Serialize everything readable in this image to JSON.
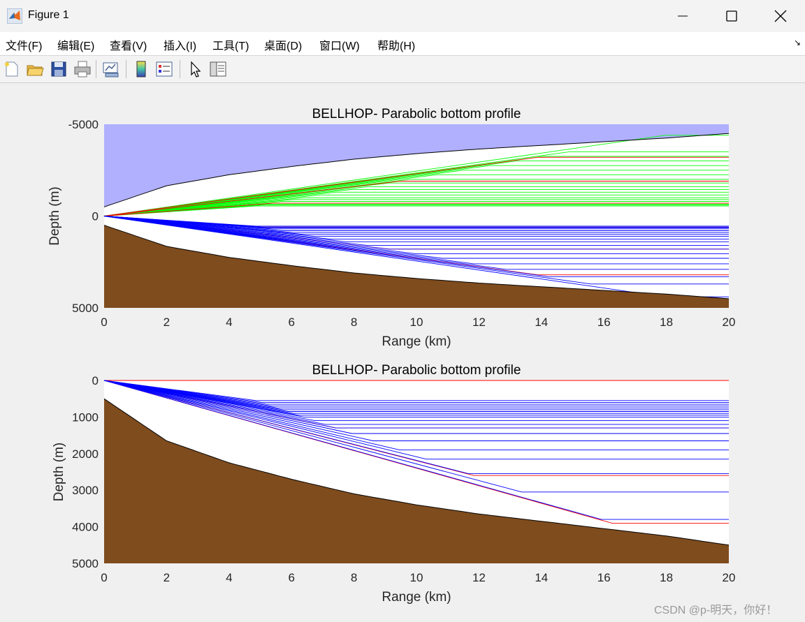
{
  "window": {
    "title": "Figure 1"
  },
  "menu": [
    "文件(F)",
    "编辑(E)",
    "查看(V)",
    "插入(I)",
    "工具(T)",
    "桌面(D)",
    "窗口(W)",
    "帮助(H)"
  ],
  "toolbar": [
    "new-figure-icon",
    "open-file-icon",
    "save-icon",
    "print-icon",
    "link-plot-icon",
    "colorbar-icon",
    "legend-icon",
    "pointer-icon",
    "property-inspector-icon"
  ],
  "watermark": "CSDN @p-明天，你好！",
  "colors": {
    "sky": "#b0b0ff",
    "bottom": "#7f4c1e",
    "ray_surface": "#00ff00",
    "ray_direct": "#ff0000",
    "ray_bottom": "#0000ff"
  },
  "chart_data": [
    {
      "type": "line",
      "title": "BELLHOP- Parabolic bottom profile",
      "xlabel": "Range (km)",
      "ylabel": "Depth (m)",
      "xlim": [
        0,
        20
      ],
      "ylim": [
        -5000,
        5000
      ],
      "y_reversed": true,
      "xticks": [
        "0",
        "2",
        "4",
        "6",
        "8",
        "10",
        "12",
        "14",
        "16",
        "18",
        "20"
      ],
      "yticks": [
        "-5000",
        "0",
        "5000"
      ],
      "surface_profile": {
        "x": [
          0,
          2,
          4,
          6,
          8,
          10,
          12,
          14,
          16,
          18,
          20
        ],
        "depth": [
          -500,
          -1650,
          -2250,
          -2700,
          -3100,
          -3400,
          -3650,
          -3850,
          -4050,
          -4250,
          -4500
        ]
      },
      "bottom_profile": {
        "x": [
          0,
          2,
          4,
          6,
          8,
          10,
          12,
          14,
          16,
          18,
          20
        ],
        "depth": [
          500,
          1650,
          2250,
          2700,
          3100,
          3400,
          3650,
          3850,
          4050,
          4250,
          4500
        ]
      },
      "series": [
        {
          "color": "#00ff00",
          "role": "surface-reflected",
          "final_depths": [
            -4400,
            -3500,
            -3250,
            -3000,
            -2750,
            -2500,
            -2250,
            -2000,
            -1800,
            -1600,
            -1450,
            -1300,
            -1150,
            -1000,
            -900,
            -800,
            -700,
            -650,
            -600,
            -550
          ]
        },
        {
          "color": "#ff0000",
          "role": "direct",
          "final_depths": [
            -3200,
            -1900,
            -700,
            600,
            1800,
            3200
          ]
        },
        {
          "color": "#0000ff",
          "role": "bottom-reflected",
          "final_depths": [
            550,
            600,
            650,
            700,
            800,
            900,
            1000,
            1100,
            1250,
            1400,
            1600,
            1800,
            2050,
            2300,
            2600,
            2900,
            3300,
            3700,
            4400
          ]
        }
      ]
    },
    {
      "type": "line",
      "title": "BELLHOP- Parabolic bottom profile",
      "xlabel": "Range (km)",
      "ylabel": "Depth (m)",
      "xlim": [
        0,
        20
      ],
      "ylim": [
        0,
        5000
      ],
      "y_reversed": true,
      "xticks": [
        "0",
        "2",
        "4",
        "6",
        "8",
        "10",
        "12",
        "14",
        "16",
        "18",
        "20"
      ],
      "yticks": [
        "0",
        "1000",
        "2000",
        "3000",
        "4000",
        "5000"
      ],
      "bottom_profile": {
        "x": [
          0,
          2,
          4,
          6,
          8,
          10,
          12,
          14,
          16,
          18,
          20
        ],
        "depth": [
          500,
          1650,
          2250,
          2700,
          3100,
          3400,
          3650,
          3850,
          4050,
          4250,
          4500
        ]
      },
      "series": [
        {
          "color": "#ff0000",
          "role": "direct",
          "final_depths": [
            0,
            1300,
            2600,
            3900
          ]
        },
        {
          "color": "#0000ff",
          "role": "bottom-reflected",
          "final_depths": [
            550,
            600,
            650,
            700,
            750,
            800,
            850,
            900,
            950,
            1000,
            1100,
            1200,
            1300,
            1450,
            1650,
            1900,
            2150,
            2550,
            3050,
            3800
          ]
        }
      ]
    }
  ]
}
